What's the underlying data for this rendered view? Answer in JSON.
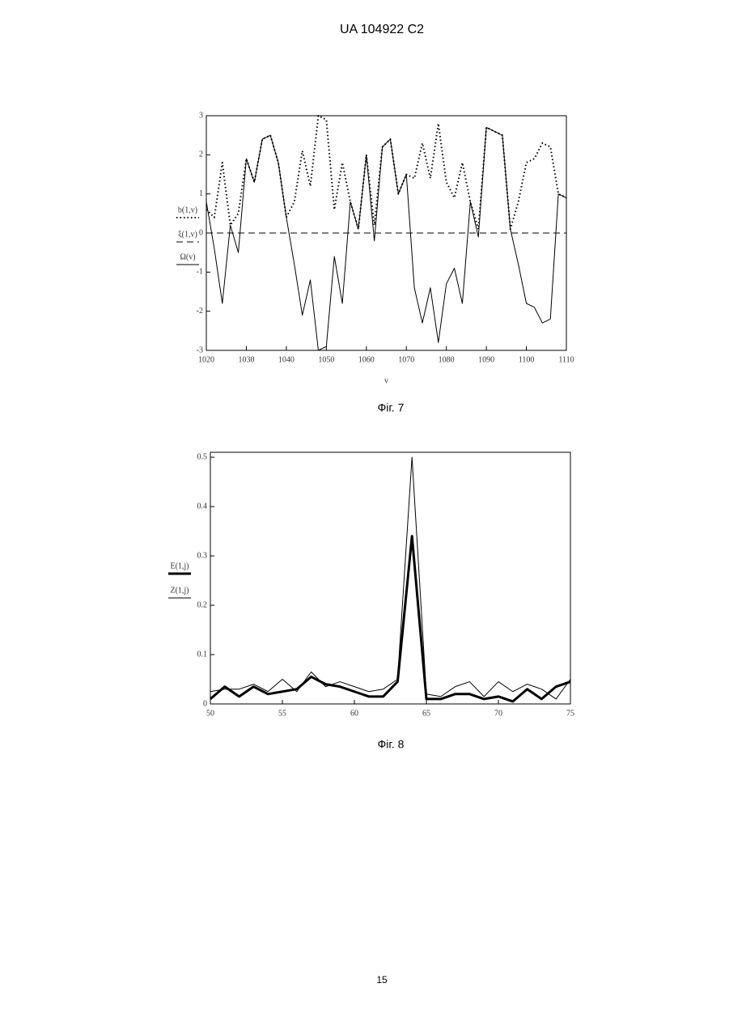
{
  "header": {
    "title": "UA 104922 C2"
  },
  "captions": [
    "Фіг. 7",
    "Фіг. 8"
  ],
  "page_number": "15",
  "chart_data": [
    {
      "type": "line",
      "xlabel": "v",
      "x": [
        1020,
        1022,
        1024,
        1026,
        1028,
        1030,
        1032,
        1034,
        1036,
        1038,
        1040,
        1042,
        1044,
        1046,
        1048,
        1050,
        1052,
        1054,
        1056,
        1058,
        1060,
        1062,
        1064,
        1066,
        1068,
        1070,
        1072,
        1074,
        1076,
        1078,
        1080,
        1082,
        1084,
        1086,
        1088,
        1090,
        1092,
        1094,
        1096,
        1098,
        1100,
        1102,
        1104,
        1106,
        1108,
        1110
      ],
      "series": [
        {
          "name": "b(1,v)",
          "color": "#000000",
          "line_style": "dotted",
          "line_width": 2,
          "values": [
            0.6,
            0.4,
            1.8,
            0.2,
            0.5,
            1.9,
            1.3,
            2.4,
            2.5,
            1.8,
            0.4,
            0.8,
            2.1,
            1.2,
            3,
            2.9,
            0.6,
            1.8,
            0.8,
            0.1,
            2.0,
            0.2,
            2.2,
            2.4,
            1.0,
            1.5,
            1.4,
            2.3,
            1.4,
            2.8,
            1.3,
            0.9,
            1.8,
            0.8,
            0.1,
            2.7,
            2.6,
            2.5,
            0.1,
            0.8,
            1.8,
            1.9,
            2.3,
            2.2,
            1.0,
            0.9
          ]
        },
        {
          "name": "ξ(1,v)",
          "color": "#000000",
          "line_style": "dashed",
          "line_width": 1,
          "values": [
            0,
            0,
            0,
            0,
            0,
            0,
            0,
            0,
            0,
            0,
            0,
            0,
            0,
            0,
            0,
            0,
            0,
            0,
            0,
            0,
            0,
            0,
            0,
            0,
            0,
            0,
            0,
            0,
            0,
            0,
            0,
            0,
            0,
            0,
            0,
            0,
            0,
            0,
            0,
            0,
            0,
            0,
            0,
            0,
            0,
            0
          ]
        },
        {
          "name": "Ω(v)",
          "color": "#000000",
          "line_style": "solid",
          "line_width": 1,
          "values": [
            0.8,
            -0.4,
            -1.8,
            0.2,
            -0.5,
            1.9,
            1.3,
            2.4,
            2.5,
            1.8,
            0.4,
            -0.8,
            -2.1,
            -1.2,
            -3,
            -2.9,
            -0.6,
            -1.8,
            0.8,
            0.1,
            2.0,
            -0.2,
            2.2,
            2.4,
            1.0,
            1.5,
            -1.4,
            -2.3,
            -1.4,
            -2.8,
            -1.3,
            -0.9,
            -1.8,
            0.8,
            -0.1,
            2.7,
            2.6,
            2.5,
            0.1,
            -0.8,
            -1.8,
            -1.9,
            -2.3,
            -2.2,
            1.0,
            0.9
          ]
        }
      ],
      "xlim": [
        1020,
        1110
      ],
      "xticks": [
        1020,
        1030,
        1040,
        1050,
        1060,
        1070,
        1080,
        1090,
        1100,
        1110
      ],
      "ylim": [
        -3,
        3
      ],
      "yticks": [
        3,
        2,
        1,
        0,
        -1,
        -2,
        -3
      ]
    },
    {
      "type": "line",
      "x": [
        50,
        51,
        52,
        53,
        54,
        55,
        56,
        57,
        58,
        59,
        60,
        61,
        62,
        63,
        64,
        65,
        66,
        67,
        68,
        69,
        70,
        71,
        72,
        73,
        74,
        75
      ],
      "series": [
        {
          "name": "E(1,j)",
          "color": "#000000",
          "line_style": "solid",
          "line_width": 3,
          "values": [
            0.01,
            0.035,
            0.015,
            0.035,
            0.02,
            0.025,
            0.03,
            0.055,
            0.04,
            0.035,
            0.025,
            0.015,
            0.015,
            0.045,
            0.34,
            0.01,
            0.01,
            0.02,
            0.02,
            0.01,
            0.015,
            0.005,
            0.03,
            0.01,
            0.035,
            0.045
          ]
        },
        {
          "name": "Z(1,j)",
          "color": "#000000",
          "line_style": "solid",
          "line_width": 1,
          "values": [
            0.025,
            0.03,
            0.03,
            0.04,
            0.025,
            0.05,
            0.025,
            0.065,
            0.035,
            0.045,
            0.035,
            0.025,
            0.03,
            0.05,
            0.5,
            0.02,
            0.015,
            0.035,
            0.045,
            0.015,
            0.045,
            0.025,
            0.04,
            0.03,
            0.01,
            0.05
          ]
        }
      ],
      "xlim": [
        50,
        75
      ],
      "xticks": [
        50,
        55,
        60,
        65,
        70,
        75
      ],
      "ylim": [
        0,
        0.51
      ],
      "yticks": [
        0,
        0.1,
        0.2,
        0.3,
        0.4,
        0.5
      ]
    }
  ]
}
